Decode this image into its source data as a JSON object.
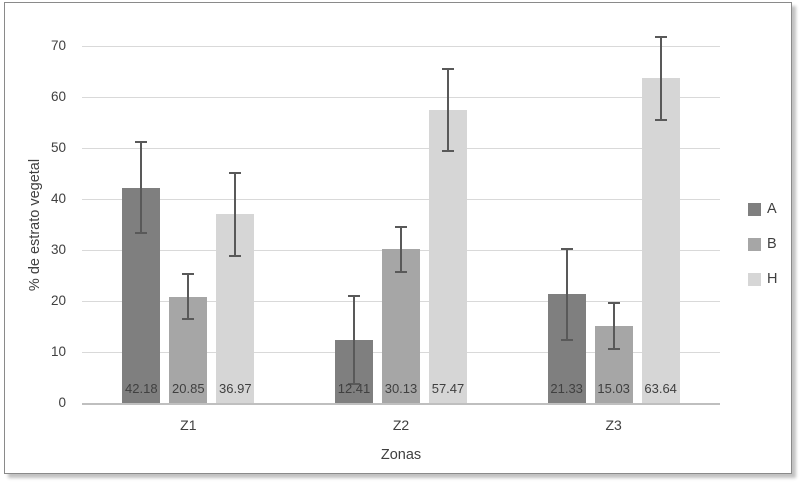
{
  "card": {
    "background": "#ffffff",
    "border_color": "#8a8a8a",
    "shadow_color": "#c2c2c2"
  },
  "chart_data": {
    "type": "bar",
    "title": "",
    "xlabel": "Zonas",
    "ylabel": "% de estrato vegetal",
    "categories": [
      "Z1",
      "Z2",
      "Z3"
    ],
    "ylim": [
      0,
      70
    ],
    "ytick_step": 10,
    "ytick_labels": [
      "0",
      "10",
      "20",
      "30",
      "40",
      "50",
      "60",
      "70"
    ],
    "grid": true,
    "legend_position": "right",
    "error_bars": true,
    "series": [
      {
        "name": "A",
        "color": "#7f7f7f",
        "values": [
          42.18,
          12.41,
          21.33
        ],
        "errors": [
          8.9,
          8.6,
          8.9
        ],
        "labels": [
          "42.18",
          "12.41",
          "21.33"
        ]
      },
      {
        "name": "B",
        "color": "#a6a6a6",
        "values": [
          20.85,
          30.13,
          15.03
        ],
        "errors": [
          4.4,
          4.4,
          4.5
        ],
        "labels": [
          "20.85",
          "30.13",
          "15.03"
        ]
      },
      {
        "name": "H",
        "color": "#d6d6d6",
        "values": [
          36.97,
          57.47,
          63.64
        ],
        "errors": [
          8.2,
          8.0,
          8.1
        ],
        "labels": [
          "36.97",
          "57.47",
          "63.64"
        ]
      }
    ],
    "styles": {
      "gridline_color": "#d9d9d9",
      "axis_line_color": "#bfbfbf",
      "error_bar_color": "#595959",
      "text_color": "#404040"
    }
  }
}
